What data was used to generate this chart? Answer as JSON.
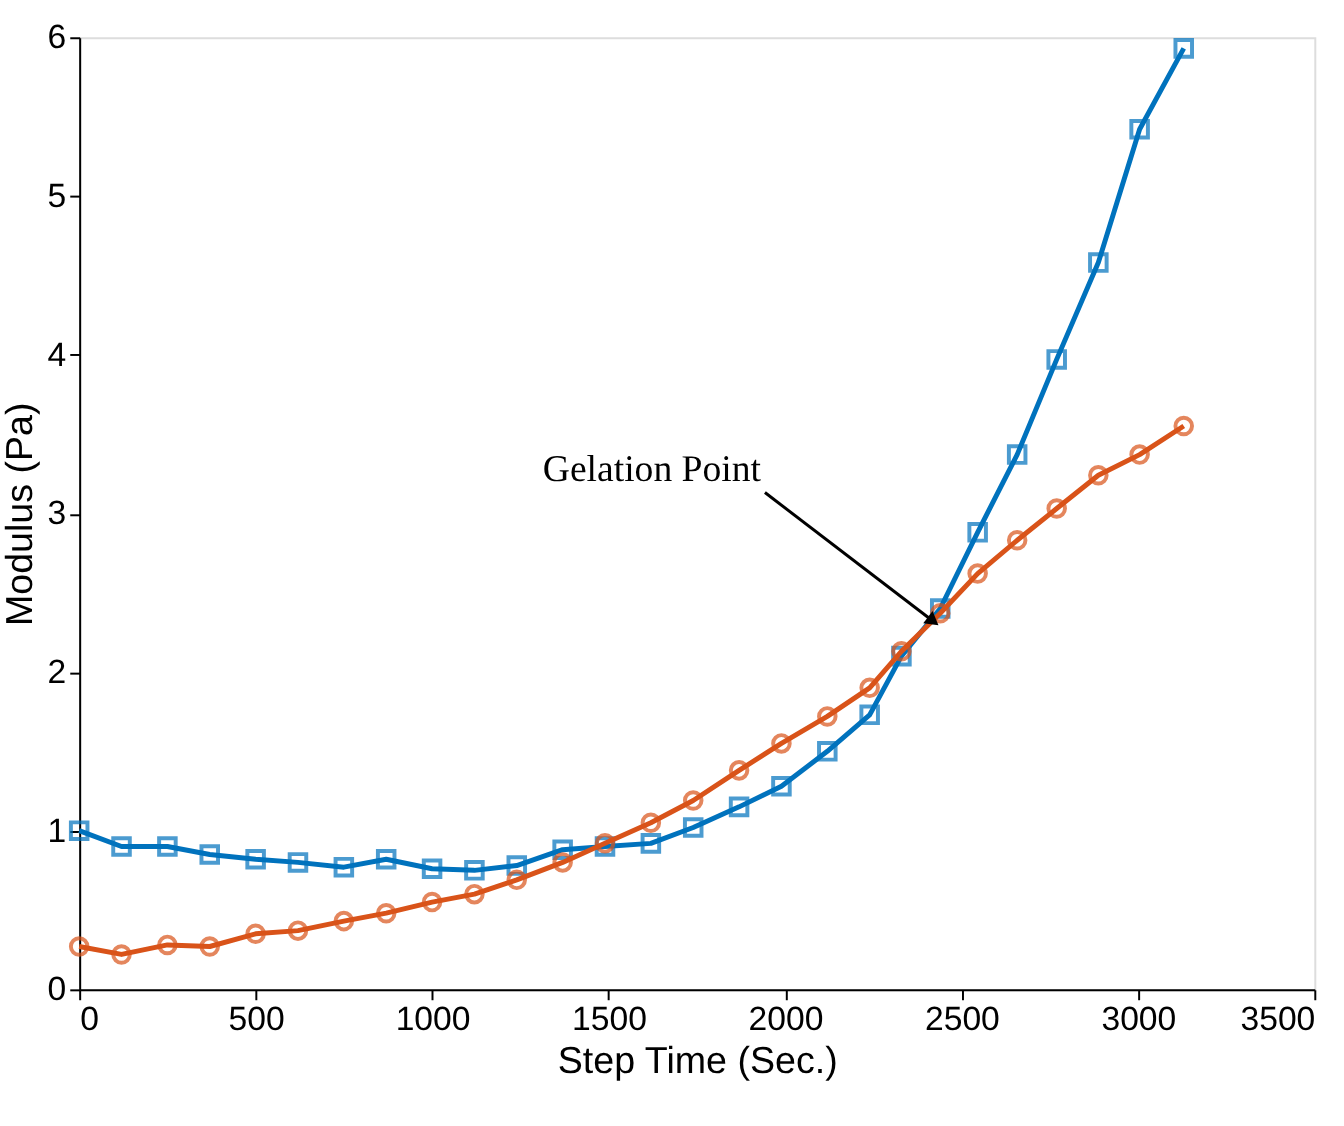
{
  "chart_data": {
    "type": "line",
    "xlabel": "Step Time (Sec.)",
    "ylabel": "Modulus (Pa)",
    "xlim": [
      0,
      3500
    ],
    "ylim": [
      0,
      6
    ],
    "xticks": [
      0,
      500,
      1000,
      1500,
      2000,
      2500,
      3000,
      3500
    ],
    "yticks": [
      0,
      1,
      2,
      3,
      4,
      5,
      6
    ],
    "grid": false,
    "line_style": "solid",
    "series": [
      {
        "color": "#0072bd",
        "marker": "square",
        "x": [
          0,
          120,
          250,
          370,
          500,
          620,
          750,
          870,
          1000,
          1120,
          1240,
          1370,
          1490,
          1620,
          1740,
          1870,
          1990,
          2120,
          2240,
          2330,
          2440,
          2546,
          2658,
          2770,
          2888,
          3005,
          3130
        ],
        "values": [
          1.0,
          0.9,
          0.9,
          0.85,
          0.82,
          0.8,
          0.77,
          0.82,
          0.76,
          0.75,
          0.78,
          0.88,
          0.9,
          0.92,
          1.02,
          1.15,
          1.28,
          1.5,
          1.73,
          2.1,
          2.4,
          2.88,
          3.37,
          3.97,
          4.58,
          5.42,
          5.93
        ]
      },
      {
        "color": "#d95319",
        "marker": "circle",
        "x": [
          0,
          120,
          250,
          370,
          500,
          620,
          750,
          870,
          1000,
          1120,
          1240,
          1370,
          1490,
          1620,
          1740,
          1870,
          1990,
          2120,
          2240,
          2330,
          2440,
          2546,
          2658,
          2770,
          2888,
          3005,
          3130
        ],
        "values": [
          0.27,
          0.22,
          0.28,
          0.27,
          0.35,
          0.37,
          0.43,
          0.48,
          0.55,
          0.6,
          0.69,
          0.8,
          0.92,
          1.05,
          1.19,
          1.38,
          1.55,
          1.72,
          1.9,
          2.13,
          2.37,
          2.62,
          2.83,
          3.03,
          3.24,
          3.37,
          3.55
        ]
      }
    ],
    "annotations": [
      {
        "text": "Gelation Point",
        "x": 2420,
        "y": 2.32
      }
    ]
  }
}
